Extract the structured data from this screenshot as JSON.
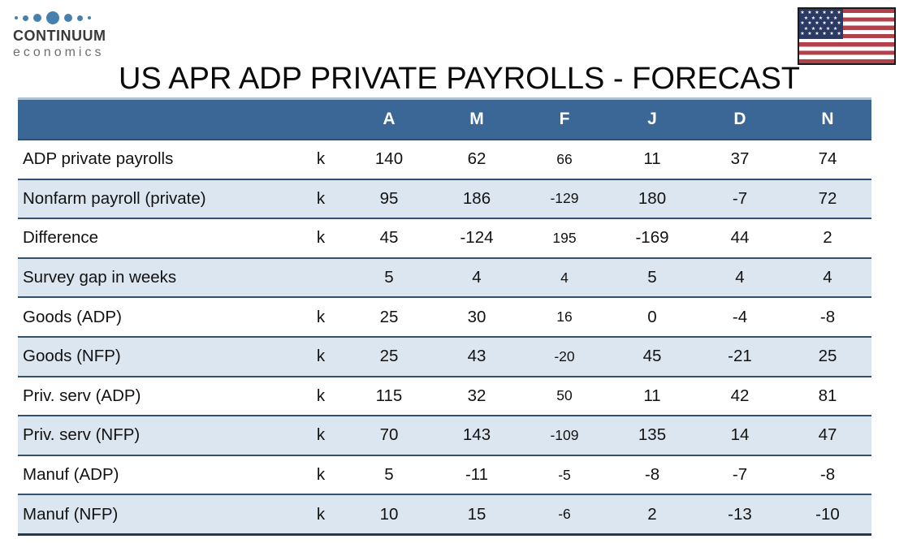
{
  "colors": {
    "header-bg": "#3A6795",
    "row-shaded": "#DCE6F1",
    "row-divider": "#31516F",
    "table-bottom": "#24394E",
    "header-top": "#AEC2D8",
    "logo-blue": "#4580AE",
    "brand-dark": "#3A3A3A",
    "brand-gray": "#6E6E6E",
    "flag-red": "#B1414B",
    "flag-navy": "#2B3A64",
    "text": "#121212"
  },
  "logo": {
    "brand": "CONTINUUM",
    "sub": "economics"
  },
  "flag": {
    "star_rows": [
      "★ ★ ★ ★ ★ ★",
      "★ ★ ★ ★ ★",
      "★ ★ ★ ★ ★ ★",
      "★ ★ ★ ★ ★",
      "★ ★ ★ ★ ★ ★"
    ]
  },
  "chart_data": {
    "type": "table",
    "title": "US APR ADP PRIVATE PAYROLLS - FORECAST",
    "columns": [
      "A",
      "M",
      "F",
      "J",
      "D",
      "N"
    ],
    "rows": [
      {
        "label": "ADP private payrolls",
        "unit": "k",
        "values": [
          140,
          62,
          66,
          11,
          37,
          74
        ]
      },
      {
        "label": "Nonfarm payroll (private)",
        "unit": "k",
        "values": [
          95,
          186,
          -129,
          180,
          -7,
          72
        ]
      },
      {
        "label": "Difference",
        "unit": "k",
        "values": [
          45,
          -124,
          195,
          -169,
          44,
          2
        ]
      },
      {
        "label": "Survey gap in weeks",
        "unit": "",
        "values": [
          5,
          4,
          4,
          5,
          4,
          4
        ]
      },
      {
        "label": "Goods (ADP)",
        "unit": "k",
        "values": [
          25,
          30,
          16,
          0,
          -4,
          -8
        ]
      },
      {
        "label": "Goods (NFP)",
        "unit": "k",
        "values": [
          25,
          43,
          -20,
          45,
          -21,
          25
        ]
      },
      {
        "label": "Priv. serv (ADP)",
        "unit": "k",
        "values": [
          115,
          32,
          50,
          11,
          42,
          81
        ]
      },
      {
        "label": "Priv. serv (NFP)",
        "unit": "k",
        "values": [
          70,
          143,
          -109,
          135,
          14,
          47
        ]
      },
      {
        "label": "Manuf (ADP)",
        "unit": "k",
        "values": [
          5,
          -11,
          -5,
          -8,
          -7,
          -8
        ]
      },
      {
        "label": "Manuf (NFP)",
        "unit": "k",
        "values": [
          10,
          15,
          -6,
          2,
          -13,
          -10
        ]
      }
    ]
  }
}
